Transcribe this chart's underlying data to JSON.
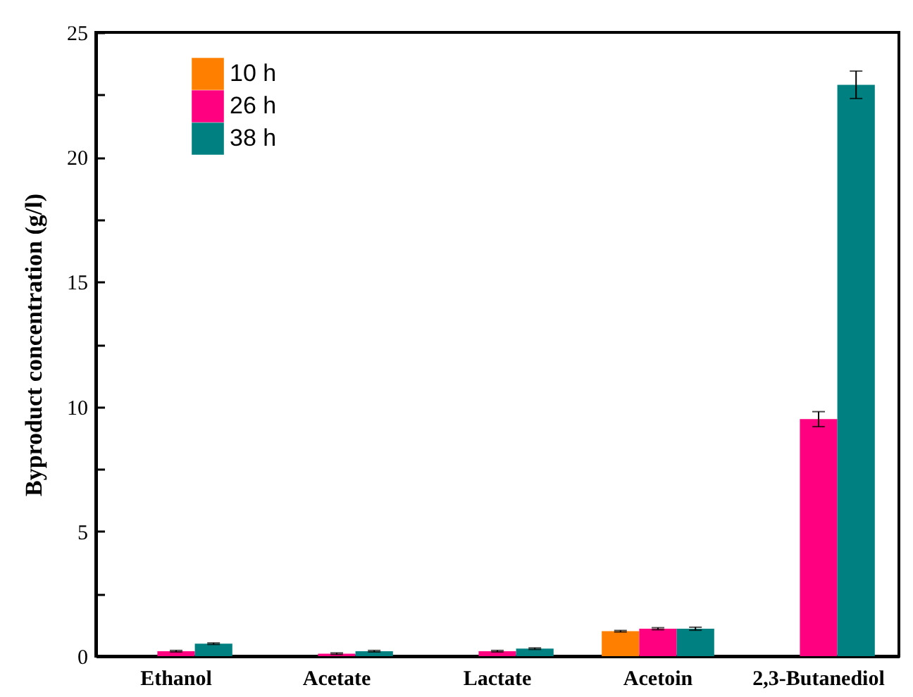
{
  "chart_data": {
    "type": "bar",
    "ylabel": "Byproduct concentration (g/l)",
    "categories": [
      "Ethanol",
      "Acetate",
      "Lactate",
      "Acetoin",
      "2,3-Butanediol"
    ],
    "series": [
      {
        "name": "10 h",
        "color": "#ff8000",
        "values": [
          null,
          null,
          null,
          1.0,
          null
        ],
        "errors": [
          null,
          null,
          null,
          0.03,
          null
        ]
      },
      {
        "name": "26 h",
        "color": "#ff0080",
        "values": [
          0.2,
          0.1,
          0.2,
          1.1,
          9.5
        ],
        "errors": [
          0.03,
          0.03,
          0.03,
          0.04,
          0.3
        ]
      },
      {
        "name": "38 h",
        "color": "#008080",
        "values": [
          0.5,
          0.2,
          0.3,
          1.1,
          22.9
        ],
        "errors": [
          0.03,
          0.03,
          0.03,
          0.06,
          0.55
        ]
      }
    ],
    "ylim": [
      0,
      25
    ],
    "yticks": [
      0,
      {
        "value": 2.5,
        "label": null
      },
      5,
      {
        "value": 7.5,
        "label": null
      },
      10,
      {
        "value": 12.5,
        "label": null
      },
      15,
      {
        "value": 17.5,
        "label": null
      },
      20,
      {
        "value": 22.5,
        "label": null
      },
      25
    ],
    "legend": "top left",
    "grid": false
  }
}
